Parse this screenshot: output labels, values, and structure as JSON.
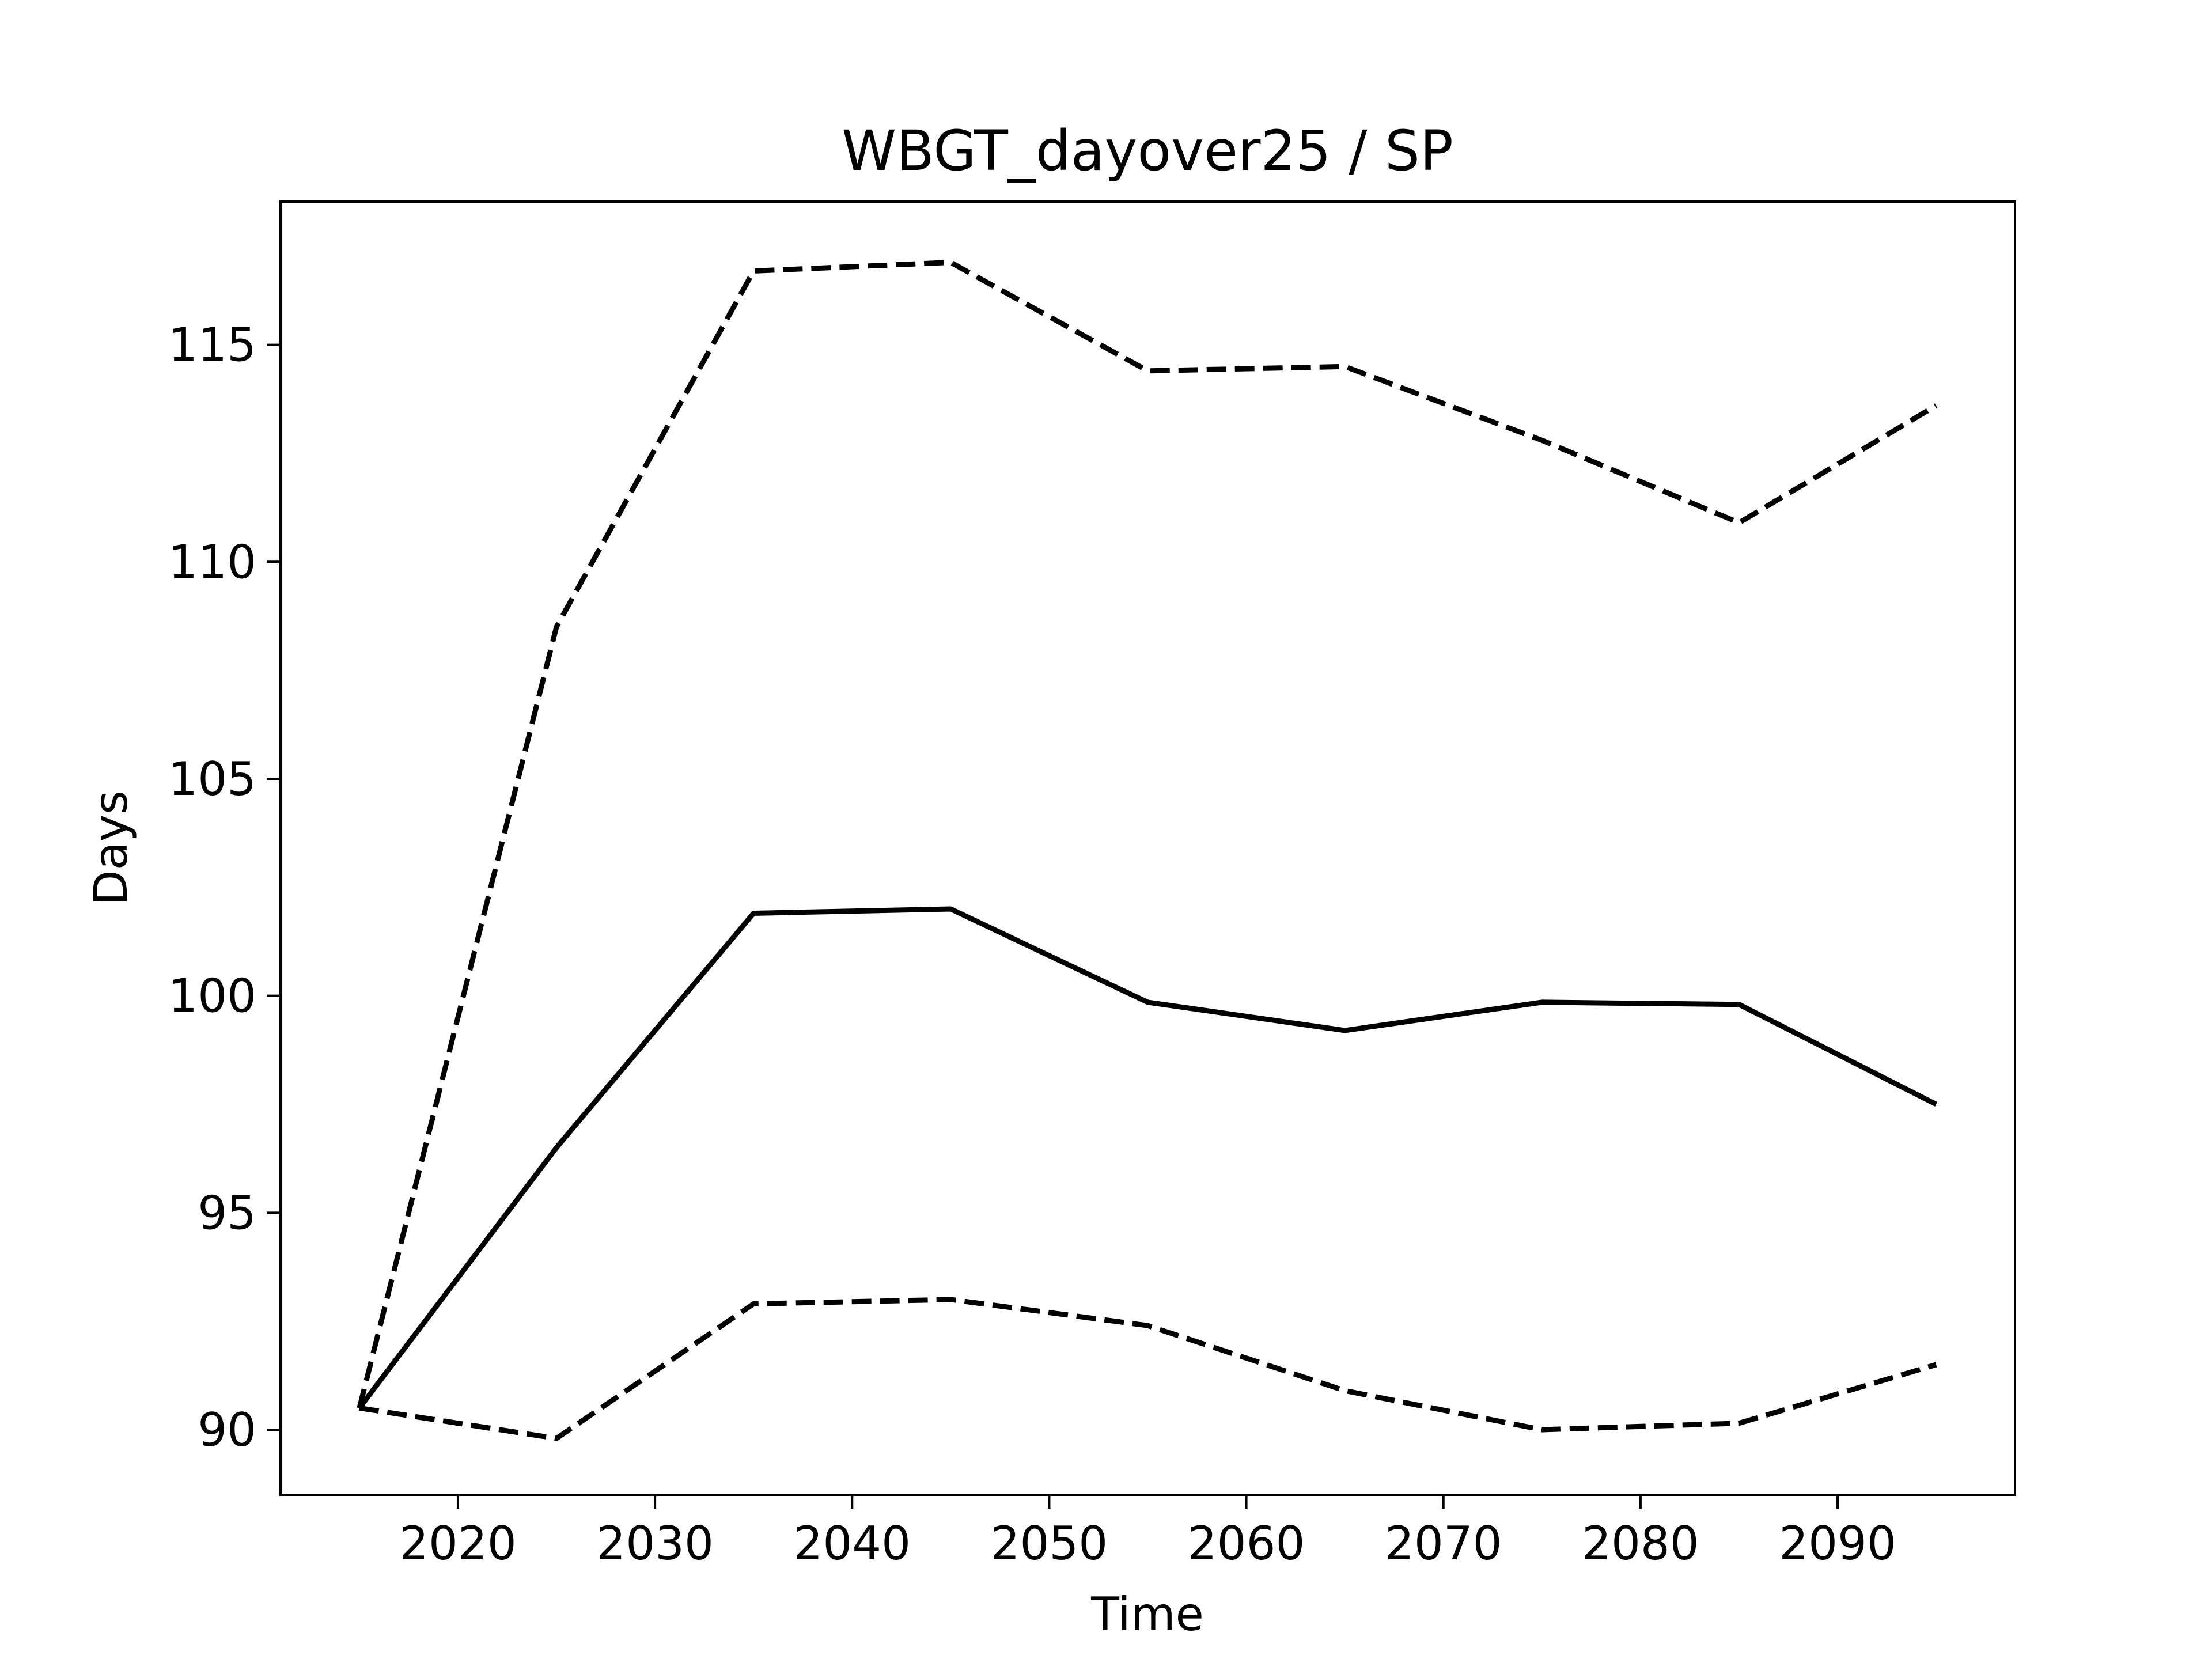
{
  "chart_data": {
    "type": "line",
    "title": "WBGT_dayover25 / SP",
    "xlabel": "Time",
    "ylabel": "Days",
    "x": [
      2015,
      2025,
      2035,
      2045,
      2055,
      2065,
      2075,
      2085,
      2095
    ],
    "xlim": [
      2011,
      2099
    ],
    "ylim": [
      88.5,
      118.3
    ],
    "xticks": [
      2020,
      2030,
      2040,
      2050,
      2060,
      2070,
      2080,
      2090
    ],
    "yticks": [
      90,
      95,
      100,
      105,
      110,
      115
    ],
    "grid": false,
    "series": [
      {
        "style": "solid",
        "color": "#000000",
        "values": [
          90.5,
          96.5,
          101.9,
          102.0,
          99.85,
          99.2,
          99.85,
          99.8,
          97.5
        ]
      },
      {
        "style": "dashed",
        "color": "#000000",
        "values": [
          90.5,
          108.5,
          116.7,
          116.9,
          114.4,
          114.5,
          112.8,
          110.9,
          113.6
        ]
      },
      {
        "style": "dashed",
        "color": "#000000",
        "values": [
          90.5,
          89.8,
          92.9,
          93.0,
          92.4,
          90.9,
          90.0,
          90.15,
          91.5
        ]
      }
    ]
  }
}
